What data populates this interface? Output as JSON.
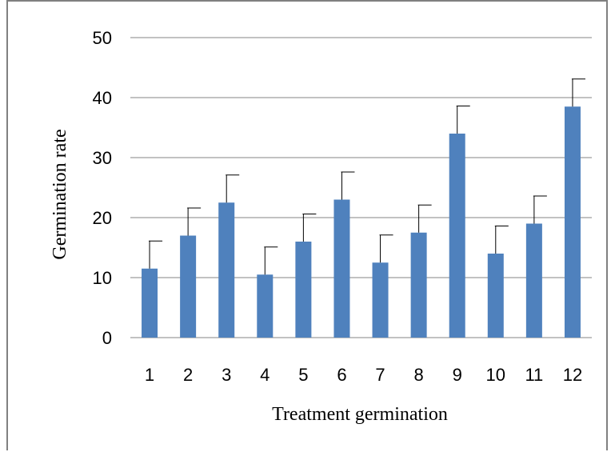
{
  "chart_data": {
    "type": "bar",
    "categories": [
      "1",
      "2",
      "3",
      "4",
      "5",
      "6",
      "7",
      "8",
      "9",
      "10",
      "11",
      "12"
    ],
    "values": [
      11.5,
      17,
      22.5,
      10.5,
      16,
      23,
      12.5,
      17.5,
      34,
      14,
      19,
      38.5
    ],
    "errors": [
      4.6,
      4.6,
      4.6,
      4.6,
      4.6,
      4.6,
      4.6,
      4.6,
      4.6,
      4.6,
      4.6,
      4.6
    ],
    "title": "",
    "xlabel": "Treatment germination",
    "ylabel": "Germination rate",
    "ylim": [
      0,
      50
    ],
    "yticks": [
      "0",
      "10",
      "20",
      "30",
      "40",
      "50"
    ],
    "grid": true,
    "bar_color": "#4f81bd",
    "grid_color": "#868686"
  }
}
